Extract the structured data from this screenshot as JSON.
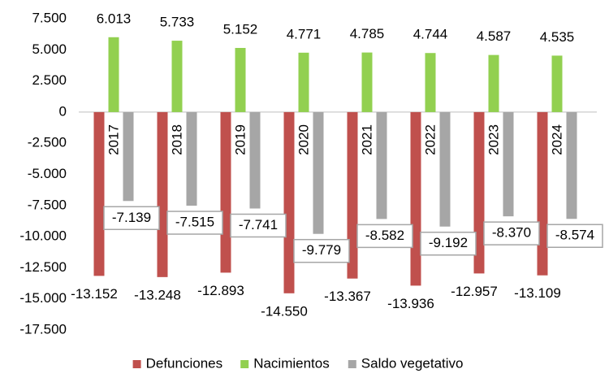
{
  "chart_data": {
    "type": "bar",
    "categories": [
      "2017",
      "2018",
      "2019",
      "2020",
      "2021",
      "2022",
      "2023",
      "2024"
    ],
    "series": [
      {
        "name": "Defunciones",
        "color": "#c0504d",
        "values": [
          -13152,
          -13248,
          -12893,
          -14550,
          -13367,
          -13936,
          -12957,
          -13109
        ],
        "value_labels": [
          "-13.152",
          "-13.248",
          "-12.893",
          "-14.550",
          "-13.367",
          "-13.936",
          "-12.957",
          "-13.109"
        ]
      },
      {
        "name": "Nacimientos",
        "color": "#92d050",
        "values": [
          6013,
          5733,
          5152,
          4771,
          4785,
          4744,
          4587,
          4535
        ],
        "value_labels": [
          "6.013",
          "5.733",
          "5.152",
          "4.771",
          "4.785",
          "4.744",
          "4.587",
          "4.535"
        ]
      },
      {
        "name": "Saldo vegetativo",
        "color": "#a6a6a6",
        "values": [
          -7139,
          -7515,
          -7741,
          -9779,
          -8582,
          -9192,
          -8370,
          -8574
        ],
        "value_labels": [
          "-7.139",
          "-7.515",
          "-7.741",
          "-9.779",
          "-8.582",
          "-9.192",
          "-8.370",
          "-8.574"
        ]
      }
    ],
    "ylim": [
      -17500,
      7500
    ],
    "yticks": [
      {
        "value": 7500,
        "label": "7.500"
      },
      {
        "value": 5000,
        "label": "5.000"
      },
      {
        "value": 2500,
        "label": "2.500"
      },
      0,
      {
        "value": -2500,
        "label": "-2.500"
      },
      {
        "value": -5000,
        "label": "-5.000"
      },
      {
        "value": -7500,
        "label": "-7.500"
      },
      {
        "value": -10000,
        "label": "-10.000"
      },
      {
        "value": -12500,
        "label": "-12.500"
      },
      {
        "value": -15000,
        "label": "-15.000"
      },
      {
        "value": -17500,
        "label": "-17.500"
      }
    ],
    "legend": "bottom"
  }
}
